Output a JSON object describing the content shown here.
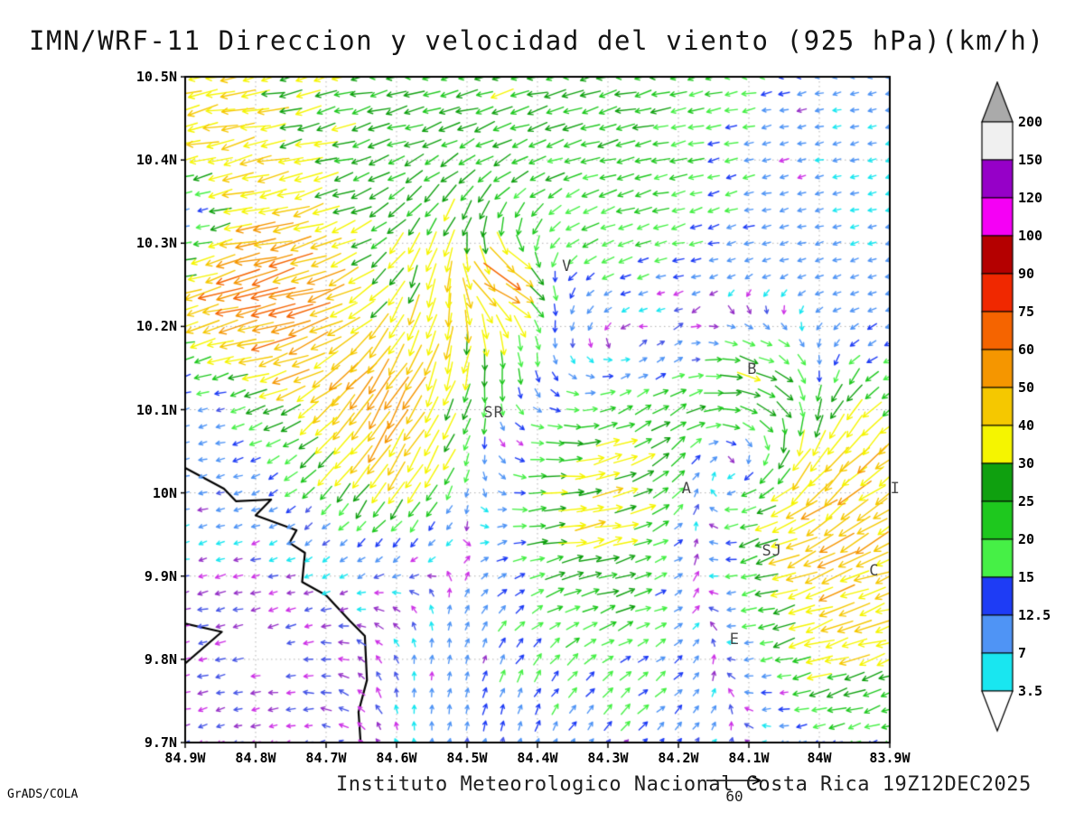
{
  "title": "IMN/WRF-11 Direccion y velocidad del viento (925 hPa)(km/h)",
  "footer": {
    "text": "Instituto Meteorologico Nacional Costa Rica 19Z12DEC2025",
    "credit": "GrADS/COLA"
  },
  "reference_vector": {
    "label": "60"
  },
  "chart_data": {
    "type": "vector_field",
    "title": "IMN/WRF-11 Direccion y velocidad del viento (925 hPa)(km/h)",
    "units": "km/h",
    "x_range": [
      84.9,
      83.9
    ],
    "y_range": [
      9.7,
      10.5
    ],
    "x_axis": {
      "ticks": [
        {
          "label": "84.9W",
          "value": 84.9
        },
        {
          "label": "84.8W",
          "value": 84.8
        },
        {
          "label": "84.7W",
          "value": 84.7
        },
        {
          "label": "84.6W",
          "value": 84.6
        },
        {
          "label": "84.5W",
          "value": 84.5
        },
        {
          "label": "84.4W",
          "value": 84.4
        },
        {
          "label": "84.3W",
          "value": 84.3
        },
        {
          "label": "84.2W",
          "value": 84.2
        },
        {
          "label": "84.1W",
          "value": 84.1
        },
        {
          "label": "84W",
          "value": 84.0
        },
        {
          "label": "83.9W",
          "value": 83.9
        }
      ]
    },
    "y_axis": {
      "ticks": [
        {
          "label": "10.5N",
          "value": 10.5
        },
        {
          "label": "10.4N",
          "value": 10.4
        },
        {
          "label": "10.3N",
          "value": 10.3
        },
        {
          "label": "10.2N",
          "value": 10.2
        },
        {
          "label": "10.1N",
          "value": 10.1
        },
        {
          "label": "10N",
          "value": 10.0
        },
        {
          "label": "9.9N",
          "value": 9.9
        },
        {
          "label": "9.8N",
          "value": 9.8
        },
        {
          "label": "9.7N",
          "value": 9.7
        }
      ]
    },
    "legend": {
      "levels": [
        3.5,
        7,
        12.5,
        15,
        20,
        25,
        30,
        40,
        50,
        60,
        75,
        90,
        100,
        120,
        150,
        200
      ],
      "colors": [
        "#ffffff",
        "#19e6f0",
        "#4f94f5",
        "#1e3cf5",
        "#46f046",
        "#1ec81e",
        "#0fa00f",
        "#f5f500",
        "#f5c800",
        "#f59600",
        "#f56400",
        "#f02800",
        "#b40000",
        "#f500f5",
        "#9600c8",
        "#f0f0f0",
        "#aaaaaa"
      ],
      "calm_colors": [
        "#9632c8",
        "#cd32e6",
        "#4655e6"
      ]
    },
    "stations": [
      {
        "label": "V",
        "lon": 84.358,
        "lat": 10.272
      },
      {
        "label": "B",
        "lon": 84.095,
        "lat": 10.148
      },
      {
        "label": "SR",
        "lon": 84.462,
        "lat": 10.096
      },
      {
        "label": "A",
        "lon": 84.188,
        "lat": 10.005
      },
      {
        "label": "I",
        "lon": 83.892,
        "lat": 10.005
      },
      {
        "label": "SJ",
        "lon": 84.067,
        "lat": 9.93
      },
      {
        "label": "C",
        "lon": 83.922,
        "lat": 9.906
      },
      {
        "label": "E",
        "lon": 84.12,
        "lat": 9.824
      }
    ],
    "coastline": [
      [
        [
          84.9,
          10.03
        ],
        [
          84.845,
          10.005
        ],
        [
          84.828,
          9.99
        ],
        [
          84.778,
          9.992
        ],
        [
          84.8,
          9.973
        ],
        [
          84.742,
          9.955
        ],
        [
          84.752,
          9.94
        ],
        [
          84.73,
          9.928
        ],
        [
          84.734,
          9.893
        ],
        [
          84.7,
          9.877
        ],
        [
          84.666,
          9.846
        ],
        [
          84.645,
          9.828
        ],
        [
          84.642,
          9.775
        ],
        [
          84.654,
          9.737
        ],
        [
          84.651,
          9.7
        ]
      ],
      [
        [
          84.9,
          9.843
        ],
        [
          84.848,
          9.833
        ],
        [
          84.9,
          9.795
        ]
      ]
    ],
    "wind_grid": {
      "nx": 41,
      "ny": 41,
      "dlon": 0.025,
      "dlat": 0.02
    },
    "flow_features": [
      {
        "type": "base",
        "u0": -7,
        "du": -19,
        "v0": -2,
        "dv": -4
      },
      {
        "type": "jet",
        "lon": 84.8,
        "lat": 10.22,
        "r": 0.13,
        "u": -45,
        "v": -12
      },
      {
        "type": "jet",
        "lon": 84.86,
        "lat": 10.47,
        "r": 0.12,
        "u": -14,
        "v": -2
      },
      {
        "type": "jet",
        "lon": 84.5,
        "lat": 10.24,
        "r": 0.13,
        "u": 14,
        "v": -32
      },
      {
        "type": "jet",
        "lon": 84.62,
        "lat": 10.06,
        "r": 0.12,
        "u": -14,
        "v": -40
      },
      {
        "type": "vortex",
        "lon": 84.12,
        "lat": 10.06,
        "r": 0.13,
        "s": 35
      },
      {
        "type": "jet",
        "lon": 84.08,
        "lat": 10.13,
        "r": 0.09,
        "u": 32,
        "v": 0
      },
      {
        "type": "jet",
        "lon": 84.44,
        "lat": 10.25,
        "r": 0.05,
        "u": 55,
        "v": 2
      },
      {
        "type": "jet",
        "lon": 84.3,
        "lat": 10.0,
        "r": 0.17,
        "u": 50,
        "v": 4
      },
      {
        "type": "jet",
        "lon": 83.95,
        "lat": 9.87,
        "r": 0.15,
        "u": -30,
        "v": -10
      },
      {
        "type": "jet",
        "lon": 83.94,
        "lat": 10.05,
        "r": 0.1,
        "u": -12,
        "v": -22
      },
      {
        "type": "jet",
        "lon": 84.48,
        "lat": 9.78,
        "r": 0.18,
        "u": 10,
        "v": 15
      },
      {
        "type": "jet",
        "lon": 84.22,
        "lat": 9.73,
        "r": 0.15,
        "u": 14,
        "v": 10
      },
      {
        "type": "damp",
        "lon": 84.8,
        "lat": 9.82,
        "r": 0.2,
        "k": 0.82
      },
      {
        "type": "damp",
        "lon": 84.88,
        "lat": 10.1,
        "r": 0.1,
        "k": 0.6
      },
      {
        "type": "damp",
        "lon": 84.895,
        "lat": 10.33,
        "r": 0.06,
        "k": 0.75
      },
      {
        "type": "damp",
        "lon": 83.92,
        "lat": 10.35,
        "r": 0.22,
        "k": 0.55
      },
      {
        "type": "damp",
        "lon": 83.95,
        "lat": 10.45,
        "r": 0.18,
        "k": 0.5
      }
    ],
    "arrow_scale": {
      "reference_speed": 60
    }
  }
}
